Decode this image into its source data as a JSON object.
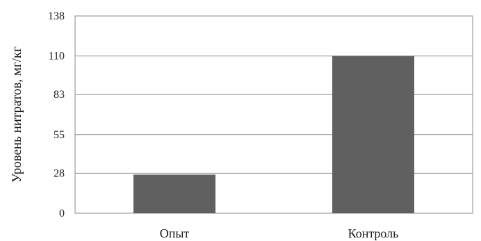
{
  "chart_data": {
    "type": "bar",
    "categories": [
      "Опыт",
      "Контроль"
    ],
    "values": [
      27,
      110
    ],
    "xlabel": "",
    "ylabel": "Уровень нитратов, мг/кг",
    "ylim": [
      0,
      138
    ],
    "yticks": [
      0,
      28,
      55,
      83,
      110,
      138
    ],
    "grid": true,
    "bar_color": "#606060",
    "grid_color": "#8a8a8a"
  }
}
